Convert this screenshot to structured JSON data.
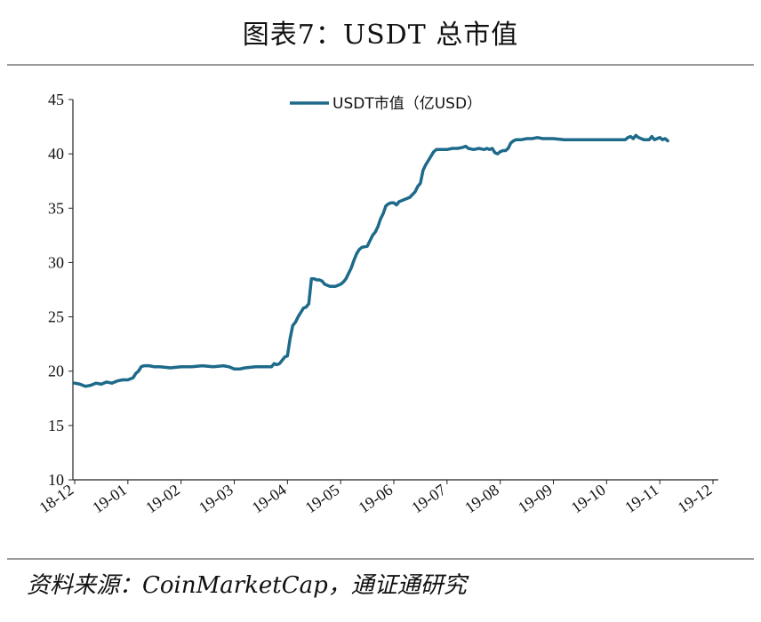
{
  "header": {
    "title": "图表7：USDT 总市值"
  },
  "footer": {
    "source": "资料来源：CoinMarketCap，通证通研究"
  },
  "colors": {
    "series": "#1d6a8a",
    "axis": "#222222",
    "rule": "#9a9a9a"
  },
  "chart_data": {
    "type": "line",
    "title": "",
    "xlabel": "",
    "ylabel": "",
    "ylim": [
      10,
      45
    ],
    "yticks": [
      "10",
      "15",
      "20",
      "25",
      "30",
      "35",
      "40",
      "45"
    ],
    "xticks": [
      "18-12",
      "19-01",
      "19-02",
      "19-03",
      "19-04",
      "19-05",
      "19-06",
      "19-07",
      "19-08",
      "19-09",
      "19-10",
      "19-11",
      "19-12"
    ],
    "grid": false,
    "legend_position": "top-center",
    "series": [
      {
        "name": "USDT市值（亿USD）",
        "color": "#1d6a8a",
        "points": [
          [
            0,
            18.9
          ],
          [
            0.1,
            18.8
          ],
          [
            0.2,
            18.6
          ],
          [
            0.3,
            18.7
          ],
          [
            0.4,
            18.9
          ],
          [
            0.5,
            18.8
          ],
          [
            0.6,
            19.0
          ],
          [
            0.7,
            18.9
          ],
          [
            0.8,
            19.1
          ],
          [
            0.9,
            19.2
          ],
          [
            1.0,
            19.2
          ],
          [
            1.1,
            19.4
          ],
          [
            1.15,
            19.8
          ],
          [
            1.2,
            20.0
          ],
          [
            1.25,
            20.4
          ],
          [
            1.3,
            20.5
          ],
          [
            1.4,
            20.5
          ],
          [
            1.5,
            20.4
          ],
          [
            1.6,
            20.4
          ],
          [
            1.8,
            20.3
          ],
          [
            2.0,
            20.4
          ],
          [
            2.2,
            20.4
          ],
          [
            2.4,
            20.5
          ],
          [
            2.6,
            20.4
          ],
          [
            2.8,
            20.5
          ],
          [
            2.9,
            20.4
          ],
          [
            3.0,
            20.2
          ],
          [
            3.1,
            20.2
          ],
          [
            3.2,
            20.3
          ],
          [
            3.4,
            20.4
          ],
          [
            3.6,
            20.4
          ],
          [
            3.7,
            20.4
          ],
          [
            3.75,
            20.7
          ],
          [
            3.8,
            20.6
          ],
          [
            3.85,
            20.7
          ],
          [
            3.9,
            21.0
          ],
          [
            3.95,
            21.3
          ],
          [
            4.0,
            21.4
          ],
          [
            4.05,
            23.0
          ],
          [
            4.1,
            24.2
          ],
          [
            4.15,
            24.5
          ],
          [
            4.2,
            25.0
          ],
          [
            4.25,
            25.4
          ],
          [
            4.3,
            25.8
          ],
          [
            4.35,
            25.9
          ],
          [
            4.4,
            26.2
          ],
          [
            4.45,
            28.5
          ],
          [
            4.5,
            28.5
          ],
          [
            4.55,
            28.4
          ],
          [
            4.6,
            28.4
          ],
          [
            4.65,
            28.3
          ],
          [
            4.7,
            28.0
          ],
          [
            4.75,
            27.9
          ],
          [
            4.8,
            27.8
          ],
          [
            4.85,
            27.8
          ],
          [
            4.9,
            27.8
          ],
          [
            4.95,
            27.9
          ],
          [
            5.0,
            28.0
          ],
          [
            5.05,
            28.2
          ],
          [
            5.1,
            28.5
          ],
          [
            5.15,
            29.0
          ],
          [
            5.2,
            29.5
          ],
          [
            5.25,
            30.2
          ],
          [
            5.3,
            30.8
          ],
          [
            5.35,
            31.2
          ],
          [
            5.4,
            31.4
          ],
          [
            5.5,
            31.5
          ],
          [
            5.55,
            32.0
          ],
          [
            5.6,
            32.5
          ],
          [
            5.65,
            32.8
          ],
          [
            5.7,
            33.3
          ],
          [
            5.75,
            34.0
          ],
          [
            5.8,
            34.5
          ],
          [
            5.85,
            35.2
          ],
          [
            5.9,
            35.4
          ],
          [
            5.95,
            35.5
          ],
          [
            6.0,
            35.5
          ],
          [
            6.05,
            35.3
          ],
          [
            6.1,
            35.6
          ],
          [
            6.15,
            35.7
          ],
          [
            6.2,
            35.8
          ],
          [
            6.3,
            36.0
          ],
          [
            6.4,
            36.5
          ],
          [
            6.45,
            37.0
          ],
          [
            6.5,
            37.3
          ],
          [
            6.55,
            38.5
          ],
          [
            6.6,
            39.0
          ],
          [
            6.65,
            39.4
          ],
          [
            6.7,
            39.8
          ],
          [
            6.75,
            40.2
          ],
          [
            6.8,
            40.4
          ],
          [
            6.9,
            40.4
          ],
          [
            7.0,
            40.4
          ],
          [
            7.1,
            40.5
          ],
          [
            7.2,
            40.5
          ],
          [
            7.3,
            40.6
          ],
          [
            7.35,
            40.7
          ],
          [
            7.4,
            40.5
          ],
          [
            7.5,
            40.4
          ],
          [
            7.6,
            40.5
          ],
          [
            7.7,
            40.4
          ],
          [
            7.75,
            40.5
          ],
          [
            7.8,
            40.4
          ],
          [
            7.85,
            40.5
          ],
          [
            7.9,
            40.1
          ],
          [
            7.95,
            40.0
          ],
          [
            8.0,
            40.2
          ],
          [
            8.05,
            40.3
          ],
          [
            8.1,
            40.3
          ],
          [
            8.15,
            40.5
          ],
          [
            8.2,
            41.0
          ],
          [
            8.25,
            41.2
          ],
          [
            8.3,
            41.3
          ],
          [
            8.4,
            41.3
          ],
          [
            8.5,
            41.4
          ],
          [
            8.6,
            41.4
          ],
          [
            8.7,
            41.5
          ],
          [
            8.8,
            41.4
          ],
          [
            8.9,
            41.4
          ],
          [
            9.0,
            41.4
          ],
          [
            9.2,
            41.3
          ],
          [
            9.4,
            41.3
          ],
          [
            9.6,
            41.3
          ],
          [
            9.8,
            41.3
          ],
          [
            10.0,
            41.3
          ],
          [
            10.2,
            41.3
          ],
          [
            10.35,
            41.3
          ],
          [
            10.4,
            41.5
          ],
          [
            10.45,
            41.6
          ],
          [
            10.5,
            41.4
          ],
          [
            10.55,
            41.7
          ],
          [
            10.6,
            41.5
          ],
          [
            10.7,
            41.3
          ],
          [
            10.8,
            41.3
          ],
          [
            10.85,
            41.6
          ],
          [
            10.9,
            41.3
          ],
          [
            11.0,
            41.5
          ],
          [
            11.05,
            41.3
          ],
          [
            11.1,
            41.4
          ],
          [
            11.15,
            41.2
          ]
        ]
      }
    ]
  }
}
